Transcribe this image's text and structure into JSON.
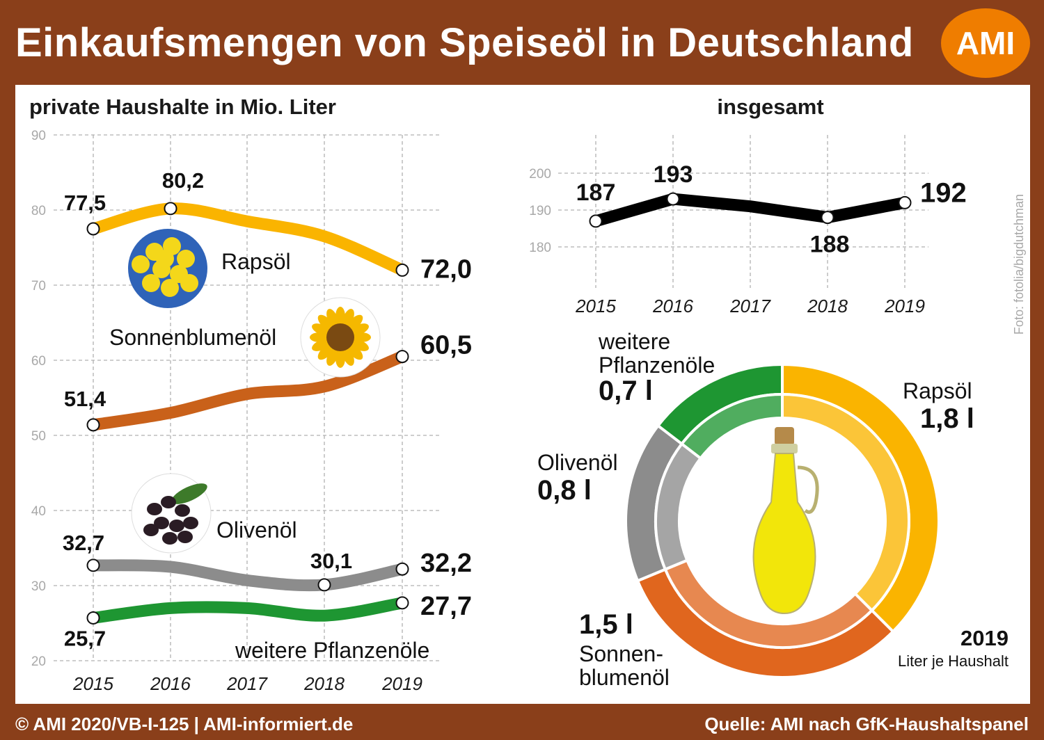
{
  "header": {
    "title": "Einkaufsmengen von Speiseöl in Deutschland",
    "logo": "AMI"
  },
  "footer": {
    "left": "© AMI 2020/VB-I-125 | AMI-informiert.de",
    "right": "Quelle: AMI nach GfK-Haushaltspanel"
  },
  "photo_credit": "Foto: fotolia/bigdutchman",
  "chart_data": [
    {
      "type": "line",
      "title": "private Haushalte in Mio. Liter",
      "x": [
        "2015",
        "2016",
        "2017",
        "2018",
        "2019"
      ],
      "ylim": [
        20,
        90
      ],
      "yticks": [
        "20",
        "30",
        "40",
        "50",
        "60",
        "70",
        "80",
        "90"
      ],
      "grid": true,
      "series": [
        {
          "name": "Rapsöl",
          "values": [
            77.5,
            80.2,
            78.5,
            76.5,
            72.0
          ],
          "labels": [
            "77,5",
            "80,2",
            "",
            "",
            "72,0"
          ],
          "color": "#fab400"
        },
        {
          "name": "Sonnenblumenöl",
          "values": [
            51.4,
            53.0,
            55.5,
            56.5,
            60.5
          ],
          "labels": [
            "51,4",
            "",
            "",
            "",
            "60,5"
          ],
          "color": "#c9611a"
        },
        {
          "name": "Olivenöl",
          "values": [
            32.7,
            32.5,
            30.7,
            30.1,
            32.2
          ],
          "labels": [
            "32,7",
            "",
            "",
            "30,1",
            "32,2"
          ],
          "color": "#8c8c8c"
        },
        {
          "name": "weitere Pflanzenöle",
          "values": [
            25.7,
            27.0,
            27.0,
            26.0,
            27.7
          ],
          "labels": [
            "25,7",
            "",
            "",
            "",
            "27,7"
          ],
          "color": "#1e9632"
        }
      ]
    },
    {
      "type": "line",
      "title": "insgesamt",
      "x": [
        "2015",
        "2016",
        "2017",
        "2018",
        "2019"
      ],
      "ylim": [
        175,
        205
      ],
      "yticks": [
        "180",
        "190",
        "200"
      ],
      "grid": true,
      "series": [
        {
          "values": [
            187,
            193,
            191,
            188,
            192
          ],
          "labels": [
            "187",
            "193",
            "",
            "188",
            "192"
          ],
          "color": "#000000"
        }
      ]
    },
    {
      "type": "pie",
      "title": "2019",
      "subtitle": "Liter je Haushalt",
      "slices": [
        {
          "name": "Rapsöl",
          "value": 1.8,
          "label": "1,8 l",
          "color": "#fab400"
        },
        {
          "name": "Sonnen-blumenöl",
          "value": 1.5,
          "label": "1,5 l",
          "color": "#e0661e"
        },
        {
          "name": "Olivenöl",
          "value": 0.8,
          "label": "0,8 l",
          "color": "#8c8c8c"
        },
        {
          "name": "weitere Pflanzenöle",
          "value": 0.7,
          "label": "0,7 l",
          "color": "#1e9632"
        }
      ]
    }
  ]
}
